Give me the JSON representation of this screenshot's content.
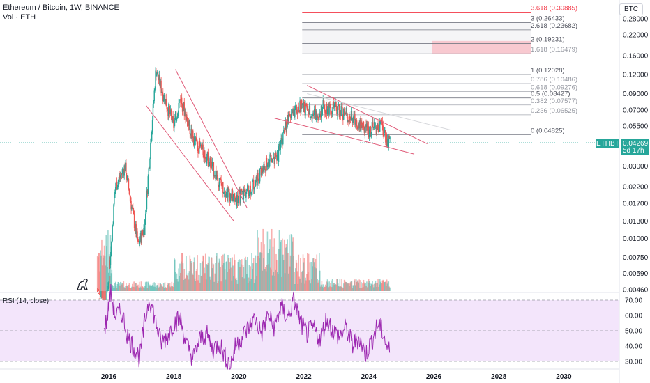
{
  "header": {
    "title": "Ethereum / Bitcoin, 1W, BINANCE",
    "volume_label": "Vol · ETH"
  },
  "currency_badge": "BTC",
  "rsi_label": "RSI (14, close)",
  "last_price": {
    "symbol": "ETHBTC",
    "value": "0.04269",
    "countdown": "5d 17h",
    "color": "#26a69a"
  },
  "colors": {
    "up": "#26a69a",
    "down": "#ef5350",
    "trendline": "#e05a78",
    "rsi_line": "#9c27b0",
    "rsi_band": "#f3e5fb",
    "fib_top": "#f23645"
  },
  "chart_data": {
    "type": "candlestick",
    "price_scale": "log",
    "price_axis_ticks": [
      "0.28000",
      "0.22000",
      "0.16000",
      "0.12000",
      "0.09000",
      "0.07000",
      "0.05500",
      "0.04269",
      "0.03000",
      "0.02200",
      "0.01700",
      "0.01300",
      "0.01000",
      "0.00750",
      "0.00590",
      "0.00460"
    ],
    "x_ticks": [
      "2016",
      "2018",
      "2020",
      "2022",
      "2024",
      "2026",
      "2028",
      "2030"
    ],
    "ohlc_path_yearly": [
      {
        "date": "2015.65",
        "price": 0.0045
      },
      {
        "date": "2015.9",
        "price": 0.003
      },
      {
        "date": "2016.2",
        "price": 0.022
      },
      {
        "date": "2016.5",
        "price": 0.03
      },
      {
        "date": "2016.9",
        "price": 0.009
      },
      {
        "date": "2017.1",
        "price": 0.012
      },
      {
        "date": "2017.45",
        "price": 0.13
      },
      {
        "date": "2017.6",
        "price": 0.1
      },
      {
        "date": "2018.0",
        "price": 0.055
      },
      {
        "date": "2018.2",
        "price": 0.085
      },
      {
        "date": "2018.6",
        "price": 0.045
      },
      {
        "date": "2019.0",
        "price": 0.035
      },
      {
        "date": "2019.5",
        "price": 0.022
      },
      {
        "date": "2019.9",
        "price": 0.018
      },
      {
        "date": "2020.4",
        "price": 0.022
      },
      {
        "date": "2020.9",
        "price": 0.032
      },
      {
        "date": "2021.2",
        "price": 0.035
      },
      {
        "date": "2021.5",
        "price": 0.06
      },
      {
        "date": "2021.9",
        "price": 0.075
      },
      {
        "date": "2022.4",
        "price": 0.065
      },
      {
        "date": "2022.6",
        "price": 0.075
      },
      {
        "date": "2023.0",
        "price": 0.072
      },
      {
        "date": "2023.5",
        "price": 0.062
      },
      {
        "date": "2024.0",
        "price": 0.052
      },
      {
        "date": "2024.4",
        "price": 0.055
      },
      {
        "date": "2024.6",
        "price": 0.043
      }
    ],
    "fib_levels": [
      {
        "label": "3.618 (0.30885)",
        "value": 0.30885
      },
      {
        "label": "3 (0.26433)",
        "value": 0.26433
      },
      {
        "label": "2.618 (0.23682)",
        "value": 0.23682
      },
      {
        "label": "2 (0.19231)",
        "value": 0.19231
      },
      {
        "label": "1.618 (0.16479)",
        "value": 0.16479
      },
      {
        "label": "1 (0.12028)",
        "value": 0.12028
      },
      {
        "label": "0.786 (0.10486)",
        "value": 0.10486
      },
      {
        "label": "0.618 (0.09276)",
        "value": 0.09276
      },
      {
        "label": "0.5 (0.08427)",
        "value": 0.08427
      },
      {
        "label": "0.382 (0.07577)",
        "value": 0.07577
      },
      {
        "label": "0.236 (0.06525)",
        "value": 0.06525
      },
      {
        "label": "0 (0.04825)",
        "value": 0.04825
      }
    ],
    "rsi_ticks": [
      "70.00",
      "60.00",
      "50.00",
      "40.00",
      "30.00"
    ],
    "rsi_band": [
      30,
      70
    ],
    "rsi_series": [
      {
        "date": "2015.85",
        "rsi": 50
      },
      {
        "date": "2015.95",
        "rsi": 58
      },
      {
        "date": "2016.05",
        "rsi": 75
      },
      {
        "date": "2016.2",
        "rsi": 60
      },
      {
        "date": "2016.4",
        "rsi": 62
      },
      {
        "date": "2016.6",
        "rsi": 45
      },
      {
        "date": "2016.8",
        "rsi": 38
      },
      {
        "date": "2016.95",
        "rsi": 32
      },
      {
        "date": "2017.1",
        "rsi": 55
      },
      {
        "date": "2017.25",
        "rsi": 72
      },
      {
        "date": "2017.4",
        "rsi": 60
      },
      {
        "date": "2017.6",
        "rsi": 42
      },
      {
        "date": "2017.8",
        "rsi": 46
      },
      {
        "date": "2018.0",
        "rsi": 55
      },
      {
        "date": "2018.2",
        "rsi": 58
      },
      {
        "date": "2018.4",
        "rsi": 40
      },
      {
        "date": "2018.6",
        "rsi": 32
      },
      {
        "date": "2018.8",
        "rsi": 44
      },
      {
        "date": "2019.0",
        "rsi": 48
      },
      {
        "date": "2019.2",
        "rsi": 38
      },
      {
        "date": "2019.4",
        "rsi": 42
      },
      {
        "date": "2019.6",
        "rsi": 32
      },
      {
        "date": "2019.75",
        "rsi": 28
      },
      {
        "date": "2019.9",
        "rsi": 40
      },
      {
        "date": "2020.1",
        "rsi": 46
      },
      {
        "date": "2020.3",
        "rsi": 52
      },
      {
        "date": "2020.5",
        "rsi": 58
      },
      {
        "date": "2020.7",
        "rsi": 48
      },
      {
        "date": "2020.9",
        "rsi": 60
      },
      {
        "date": "2021.1",
        "rsi": 52
      },
      {
        "date": "2021.3",
        "rsi": 66
      },
      {
        "date": "2021.5",
        "rsi": 58
      },
      {
        "date": "2021.7",
        "rsi": 70
      },
      {
        "date": "2021.9",
        "rsi": 55
      },
      {
        "date": "2022.1",
        "rsi": 48
      },
      {
        "date": "2022.3",
        "rsi": 52
      },
      {
        "date": "2022.5",
        "rsi": 44
      },
      {
        "date": "2022.7",
        "rsi": 58
      },
      {
        "date": "2022.9",
        "rsi": 50
      },
      {
        "date": "2023.1",
        "rsi": 46
      },
      {
        "date": "2023.3",
        "rsi": 52
      },
      {
        "date": "2023.5",
        "rsi": 40
      },
      {
        "date": "2023.7",
        "rsi": 46
      },
      {
        "date": "2023.9",
        "rsi": 34
      },
      {
        "date": "2024.1",
        "rsi": 44
      },
      {
        "date": "2024.3",
        "rsi": 55
      },
      {
        "date": "2024.45",
        "rsi": 48
      },
      {
        "date": "2024.55",
        "rsi": 40
      },
      {
        "date": "2024.65",
        "rsi": 36
      }
    ]
  }
}
